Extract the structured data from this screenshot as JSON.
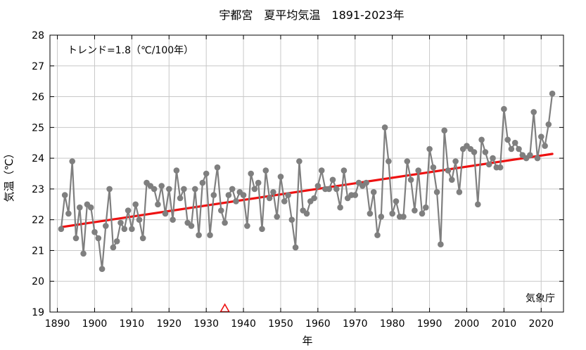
{
  "chart_data": {
    "type": "line",
    "title": "宇都宮　夏平均気温　1891-2023年",
    "xlabel": "年",
    "ylabel": "気温（℃）",
    "xlim": [
      1888,
      2026
    ],
    "ylim": [
      19,
      28
    ],
    "x_ticks": [
      1890,
      1900,
      1910,
      1920,
      1930,
      1940,
      1950,
      1960,
      1970,
      1980,
      1990,
      2000,
      2010,
      2020
    ],
    "y_ticks": [
      19,
      20,
      21,
      22,
      23,
      24,
      25,
      26,
      27,
      28
    ],
    "trend_text": "トレンド=1.8（℃/100年）",
    "source_text": "気象庁",
    "series": [
      {
        "x": [
          1891,
          1892,
          1893,
          1894,
          1895,
          1896,
          1897,
          1898,
          1899,
          1900,
          1901,
          1902,
          1903,
          1904,
          1905,
          1906,
          1907,
          1908,
          1909,
          1910,
          1911,
          1912,
          1913,
          1914,
          1915,
          1916,
          1917,
          1918,
          1919,
          1920,
          1921,
          1922,
          1923,
          1924,
          1925,
          1926,
          1927,
          1928,
          1929,
          1930,
          1931,
          1932,
          1933,
          1934,
          1935,
          1936,
          1937,
          1938,
          1939,
          1940,
          1941,
          1942,
          1943,
          1944,
          1945,
          1946,
          1947,
          1948,
          1949,
          1950,
          1951,
          1952,
          1953,
          1954,
          1955,
          1956,
          1957,
          1958,
          1959,
          1960,
          1961,
          1962,
          1963,
          1964,
          1965,
          1966,
          1967,
          1968,
          1969,
          1970,
          1971,
          1972,
          1973,
          1974,
          1975,
          1976,
          1977,
          1978,
          1979,
          1980,
          1981,
          1982,
          1983,
          1984,
          1985,
          1986,
          1987,
          1988,
          1989,
          1990,
          1991,
          1992,
          1993,
          1994,
          1995,
          1996,
          1997,
          1998,
          1999,
          2000,
          2001,
          2002,
          2003,
          2004,
          2005,
          2006,
          2007,
          2008,
          2009,
          2010,
          2011,
          2012,
          2013,
          2014,
          2015,
          2016,
          2017,
          2018,
          2019,
          2020,
          2021,
          2022,
          2023
        ],
        "values": [
          21.7,
          22.8,
          22.2,
          23.9,
          21.4,
          22.4,
          20.9,
          22.5,
          22.4,
          21.6,
          21.4,
          20.4,
          21.8,
          23.0,
          21.1,
          21.3,
          21.9,
          21.7,
          22.3,
          21.7,
          22.5,
          22.0,
          21.4,
          23.2,
          23.1,
          23.0,
          22.5,
          23.1,
          22.2,
          23.0,
          22.0,
          23.6,
          22.7,
          23.0,
          21.9,
          21.8,
          23.0,
          21.5,
          23.2,
          23.5,
          21.5,
          22.8,
          23.7,
          22.3,
          21.9,
          22.8,
          23.0,
          22.6,
          22.9,
          22.8,
          21.8,
          23.5,
          23.0,
          23.2,
          21.7,
          23.6,
          22.7,
          22.9,
          22.1,
          23.4,
          22.6,
          22.8,
          22.0,
          21.1,
          23.9,
          22.3,
          22.2,
          22.6,
          22.7,
          23.1,
          23.6,
          23.0,
          23.0,
          23.3,
          23.0,
          22.4,
          23.6,
          22.7,
          22.8,
          22.8,
          23.2,
          23.1,
          23.2,
          22.2,
          22.9,
          21.5,
          22.1,
          25.0,
          23.9,
          22.2,
          22.6,
          22.1,
          22.1,
          23.9,
          23.3,
          22.3,
          23.6,
          22.2,
          22.4,
          24.3,
          23.7,
          22.9,
          21.2,
          24.9,
          23.6,
          23.3,
          23.9,
          22.9,
          24.3,
          24.4,
          24.3,
          24.2,
          22.5,
          24.6,
          24.2,
          23.8,
          24.0,
          23.7,
          23.7,
          25.6,
          24.6,
          24.3,
          24.5,
          24.3,
          24.1,
          24.0,
          24.1,
          25.5,
          24.0,
          24.7,
          24.4,
          25.1,
          26.1
        ],
        "color": "#7f7f7f"
      }
    ],
    "trend": {
      "x": [
        1891,
        2023
      ],
      "values": [
        21.76,
        24.14
      ],
      "color": "#ee1111"
    },
    "marker": {
      "x": 1935,
      "y": 19,
      "shape": "triangle",
      "color": "#ee1111"
    }
  }
}
